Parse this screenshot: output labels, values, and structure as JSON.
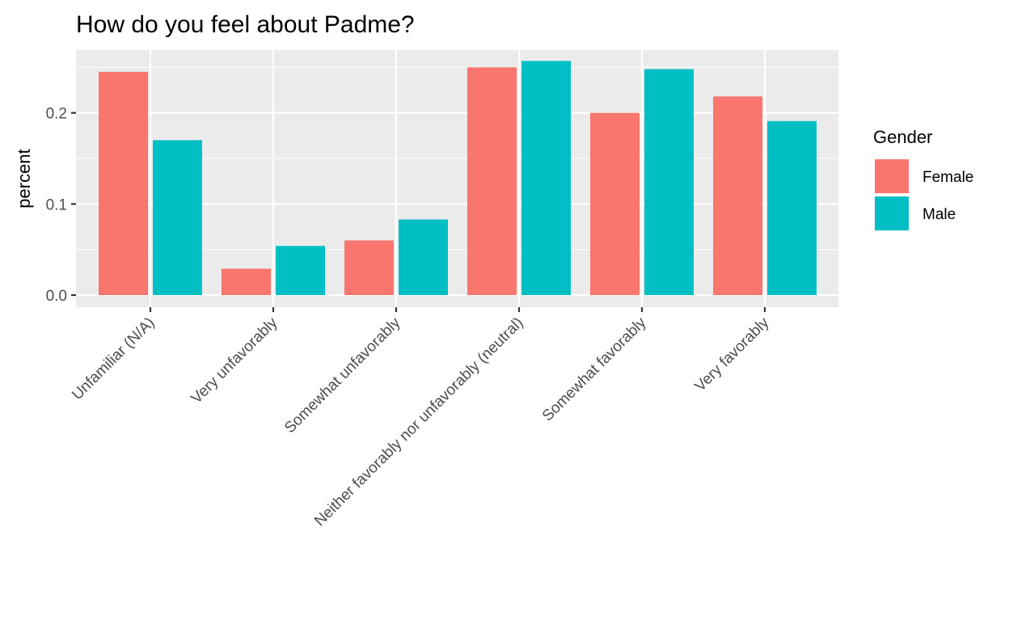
{
  "chart_data": {
    "type": "bar",
    "title": "How do you feel about Padme?",
    "xlabel": "",
    "ylabel": "percent",
    "categories": [
      "Unfamiliar (N/A)",
      "Very unfavorably",
      "Somewhat unfavorably",
      "Neither favorably nor unfavorably (neutral)",
      "Somewhat favorably",
      "Very favorably"
    ],
    "series": [
      {
        "name": "Female",
        "values": [
          0.245,
          0.029,
          0.06,
          0.25,
          0.2,
          0.218
        ]
      },
      {
        "name": "Male",
        "values": [
          0.17,
          0.054,
          0.083,
          0.257,
          0.248,
          0.191
        ]
      }
    ],
    "ylim": [
      -0.013,
      0.27
    ],
    "yticks": [
      0.0,
      0.1,
      0.2
    ],
    "ytick_labels": [
      "0.0",
      "0.1",
      "0.2"
    ],
    "legend": {
      "title": "Gender",
      "position": "right"
    },
    "colors": {
      "Female": "#F8766D",
      "Male": "#00BFC4",
      "panel_background": "#EBEBEB",
      "grid": "#FFFFFF",
      "axis_text": "#4D4D4D",
      "tick": "#333333"
    },
    "grid": true
  }
}
